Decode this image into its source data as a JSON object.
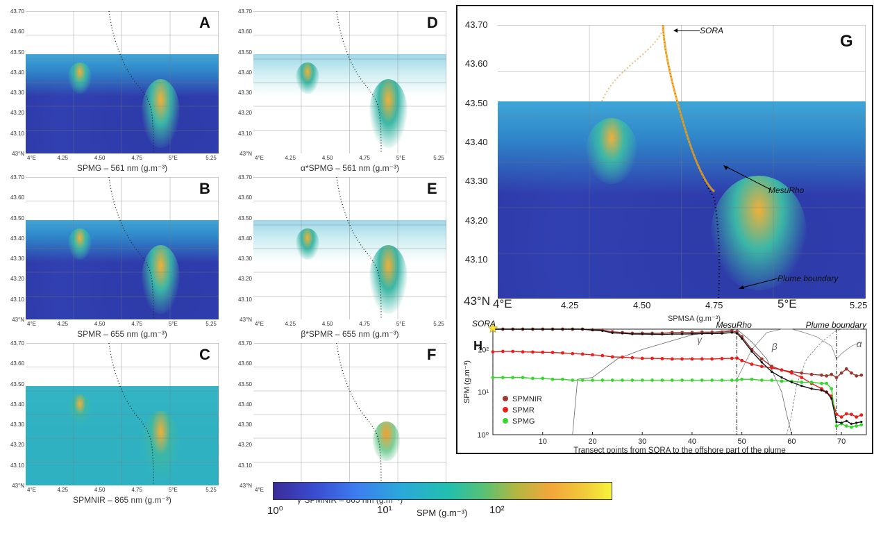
{
  "small_panels": {
    "A": {
      "letter": "A",
      "caption": "SPMG – 561 nm (g.m⁻³)"
    },
    "B": {
      "letter": "B",
      "caption": "SPMR – 655 nm (g.m⁻³)"
    },
    "C": {
      "letter": "C",
      "caption": "SPMNIR – 865 nm (g.m⁻³)"
    },
    "D": {
      "letter": "D",
      "caption": "α*SPMG – 561 nm (g.m⁻³)"
    },
    "E": {
      "letter": "E",
      "caption": "β*SPMR – 655 nm (g.m⁻³)"
    },
    "F": {
      "letter": "F",
      "caption": "γ*SPMNIR – 865 nm (g.m⁻³)"
    }
  },
  "map_axes": {
    "lat_ticks": [
      "43.70",
      "43.60",
      "43.50",
      "43.40",
      "43.30",
      "43.20",
      "43.10"
    ],
    "lat_origin": "43°N",
    "lon_ticks": [
      "4°E",
      "4.25",
      "4.50",
      "4.75",
      "5°E",
      "5.25"
    ]
  },
  "panel_G": {
    "letter": "G",
    "caption": "SPMSA (g.m⁻³)",
    "annotations": {
      "sora": "SORA",
      "mesurho": "MesuRho",
      "plume": "Plume boundary"
    }
  },
  "chart_data": {
    "type": "line",
    "panel_letter": "H",
    "xlabel": "Transect points from SORA to the offshore part of the plume",
    "ylabel": "SPM (g.m⁻³)",
    "xlim": [
      0,
      75
    ],
    "ylim_log": [
      1,
      300
    ],
    "xticks": [
      10,
      20,
      30,
      40,
      50,
      60,
      70
    ],
    "yticks": [
      "10⁰",
      "10¹",
      "10²"
    ],
    "top_labels": {
      "sora": "SORA",
      "mesurho": "MesuRho",
      "plume": "Plume boundary"
    },
    "region_labels": [
      "γ",
      "β",
      "α"
    ],
    "vlines_x": [
      0,
      49,
      69
    ],
    "x": [
      0,
      2,
      4,
      6,
      8,
      10,
      12,
      14,
      16,
      18,
      20,
      22,
      24,
      26,
      28,
      30,
      32,
      34,
      36,
      38,
      40,
      42,
      44,
      46,
      48,
      49,
      50,
      52,
      54,
      56,
      58,
      60,
      62,
      64,
      66,
      67,
      68,
      69,
      70,
      71,
      72,
      73,
      74
    ],
    "series": [
      {
        "name": "SPMNIR",
        "color": "#9b3a35",
        "values": [
          300,
          300,
          300,
          300,
          300,
          300,
          300,
          300,
          300,
          300,
          290,
          285,
          260,
          250,
          240,
          240,
          240,
          240,
          250,
          250,
          250,
          255,
          255,
          255,
          270,
          260,
          200,
          100,
          60,
          40,
          33,
          30,
          28,
          26,
          25,
          24,
          26,
          22,
          28,
          35,
          28,
          24,
          25
        ]
      },
      {
        "name": "SPMR",
        "color": "#e8201c",
        "values": [
          88,
          90,
          90,
          88,
          87,
          86,
          85,
          83,
          80,
          78,
          75,
          72,
          67,
          66,
          64,
          62,
          62,
          61,
          60,
          60,
          60,
          60,
          60,
          61,
          62,
          63,
          55,
          45,
          40,
          37,
          33,
          28,
          22,
          16,
          12,
          10,
          8,
          3.0,
          2.6,
          3.1,
          3.0,
          2.6,
          2.9
        ]
      },
      {
        "name": "SPMG",
        "color": "#39d630",
        "values": [
          22,
          22,
          22,
          22,
          21,
          21,
          20,
          20,
          19,
          19,
          19,
          19,
          19,
          19,
          19,
          19,
          19,
          19,
          19,
          19,
          19,
          19,
          19,
          19,
          19,
          19,
          20,
          20,
          19,
          19,
          18,
          18,
          17,
          17,
          16,
          16,
          12,
          1.6,
          1.8,
          1.6,
          1.5,
          1.6,
          1.7
        ]
      },
      {
        "name": "",
        "color": "#111111",
        "values": [
          300,
          300,
          300,
          300,
          300,
          300,
          300,
          300,
          300,
          300,
          285,
          275,
          245,
          240,
          230,
          230,
          228,
          226,
          230,
          230,
          232,
          236,
          236,
          238,
          250,
          240,
          180,
          90,
          50,
          30,
          22,
          17,
          14,
          12,
          11,
          10,
          7,
          2.0,
          1.9,
          2.1,
          1.8,
          1.9,
          2.0
        ]
      }
    ],
    "weight_curves": {
      "gamma": {
        "x": [
          16,
          17,
          20,
          25,
          30,
          40,
          49,
          52,
          55,
          58,
          59,
          60
        ],
        "values": [
          1,
          20,
          22,
          60,
          100,
          220,
          300,
          150,
          60,
          10,
          3,
          1
        ]
      },
      "beta": {
        "x": [
          49,
          52,
          55,
          58,
          60,
          62,
          65,
          68,
          69,
          70,
          72,
          74
        ],
        "values": [
          20,
          100,
          250,
          300,
          300,
          260,
          200,
          120,
          60,
          80,
          120,
          150
        ]
      },
      "alpha": {
        "x": [
          59,
          60,
          61,
          63,
          66,
          69,
          70,
          72,
          74
        ],
        "values": [
          1,
          3,
          15,
          60,
          150,
          280,
          300,
          300,
          300
        ]
      }
    },
    "legend": [
      "SPMNIR",
      "SPMR",
      "SPMG"
    ]
  },
  "colorbar": {
    "label": "SPM (g.m⁻³)",
    "ticks": [
      "10⁰",
      "10¹",
      "10²"
    ]
  }
}
